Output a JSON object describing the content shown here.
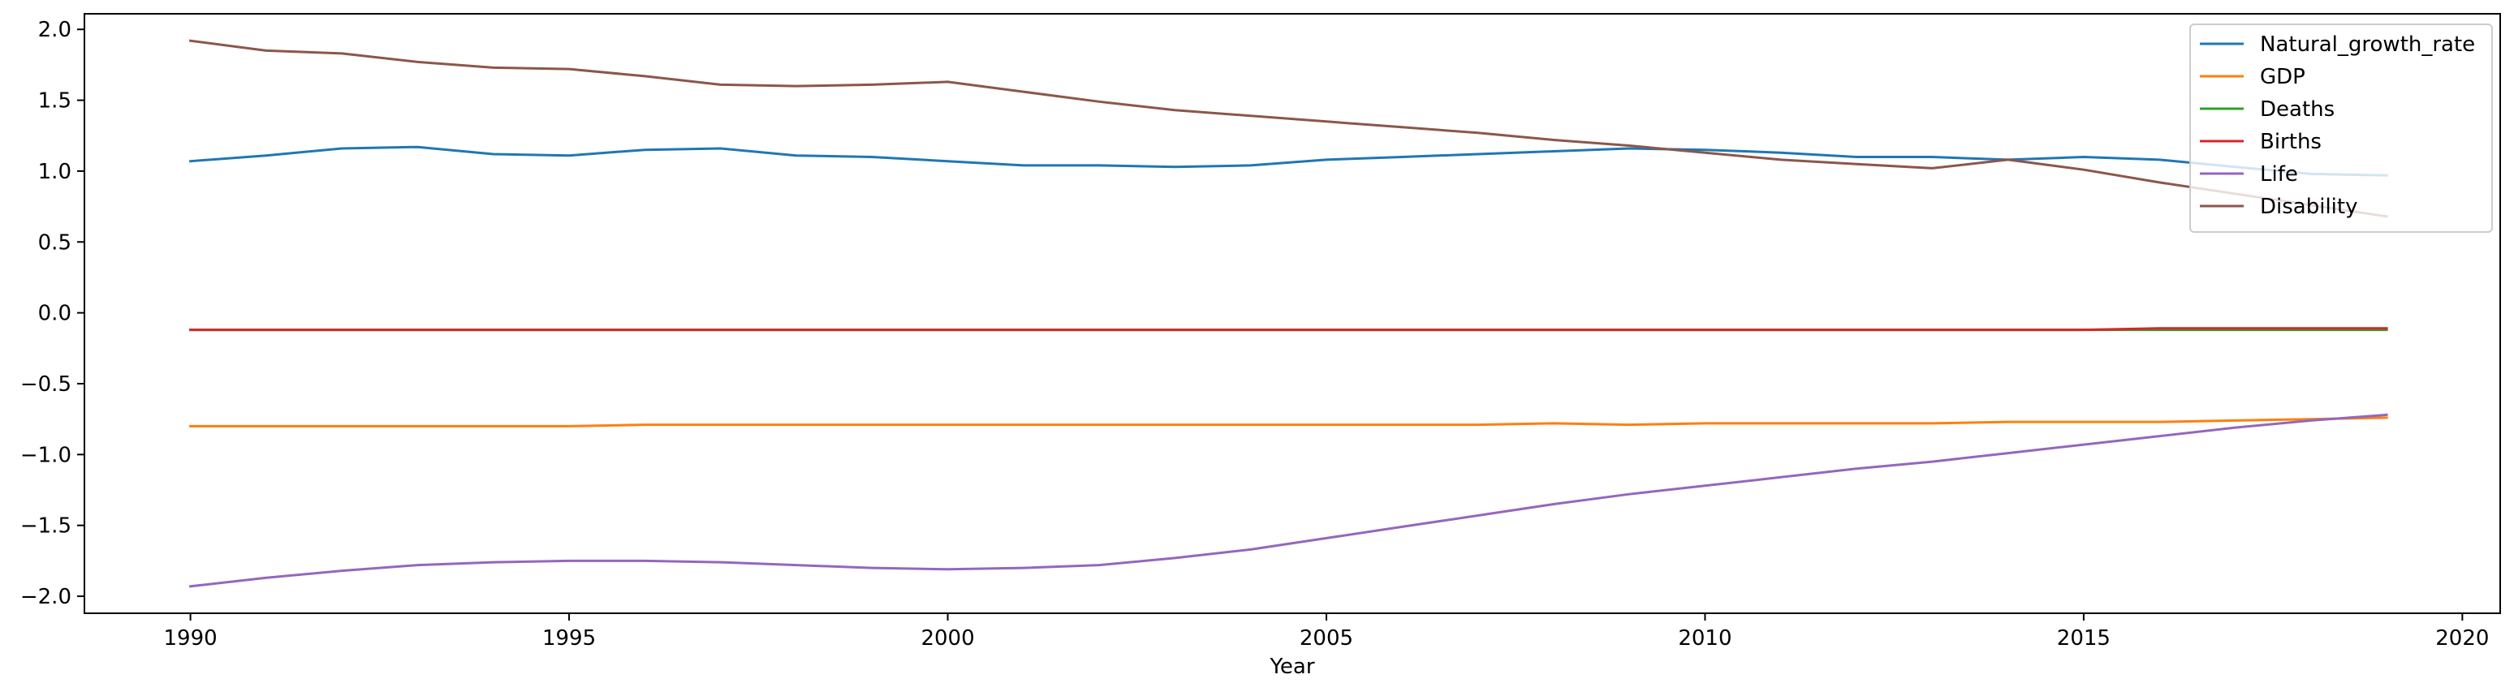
{
  "chart_data": {
    "type": "line",
    "xlabel": "Year",
    "ylabel": "",
    "xlim": [
      1988.6,
      2020.5
    ],
    "ylim": [
      -2.12,
      2.11
    ],
    "x_ticks": [
      1990,
      1995,
      2000,
      2005,
      2010,
      2015,
      2020
    ],
    "y_ticks": [
      2.0,
      1.5,
      1.0,
      0.5,
      0.0,
      -0.5,
      -1.0,
      -1.5,
      -2.0
    ],
    "y_tick_labels": [
      "2.0",
      "1.5",
      "1.0",
      "0.5",
      "0.0",
      "−0.5",
      "−1.0",
      "−1.5",
      "−2.0"
    ],
    "legend_position": "top-right",
    "x": [
      1990,
      1991,
      1992,
      1993,
      1994,
      1995,
      1996,
      1997,
      1998,
      1999,
      2000,
      2001,
      2002,
      2003,
      2004,
      2005,
      2006,
      2007,
      2008,
      2009,
      2010,
      2011,
      2012,
      2013,
      2014,
      2015,
      2016,
      2017,
      2018,
      2019
    ],
    "series": [
      {
        "name": "Natural_growth_rate",
        "color": "#1f77b4",
        "values": [
          1.07,
          1.11,
          1.16,
          1.17,
          1.12,
          1.11,
          1.15,
          1.16,
          1.11,
          1.1,
          1.07,
          1.04,
          1.04,
          1.03,
          1.04,
          1.08,
          1.1,
          1.12,
          1.14,
          1.16,
          1.15,
          1.13,
          1.1,
          1.1,
          1.08,
          1.1,
          1.08,
          1.03,
          0.98,
          0.97
        ]
      },
      {
        "name": "GDP",
        "color": "#ff7f0e",
        "values": [
          -0.8,
          -0.8,
          -0.8,
          -0.8,
          -0.8,
          -0.8,
          -0.79,
          -0.79,
          -0.79,
          -0.79,
          -0.79,
          -0.79,
          -0.79,
          -0.79,
          -0.79,
          -0.79,
          -0.79,
          -0.79,
          -0.78,
          -0.79,
          -0.78,
          -0.78,
          -0.78,
          -0.78,
          -0.77,
          -0.77,
          -0.77,
          -0.76,
          -0.75,
          -0.74
        ]
      },
      {
        "name": "Deaths",
        "color": "#2ca02c",
        "values": [
          -0.12,
          -0.12,
          -0.12,
          -0.12,
          -0.12,
          -0.12,
          -0.12,
          -0.12,
          -0.12,
          -0.12,
          -0.12,
          -0.12,
          -0.12,
          -0.12,
          -0.12,
          -0.12,
          -0.12,
          -0.12,
          -0.12,
          -0.12,
          -0.12,
          -0.12,
          -0.12,
          -0.12,
          -0.12,
          -0.12,
          -0.12,
          -0.12,
          -0.12,
          -0.12
        ]
      },
      {
        "name": "Births",
        "color": "#d62728",
        "values": [
          -0.12,
          -0.12,
          -0.12,
          -0.12,
          -0.12,
          -0.12,
          -0.12,
          -0.12,
          -0.12,
          -0.12,
          -0.12,
          -0.12,
          -0.12,
          -0.12,
          -0.12,
          -0.12,
          -0.12,
          -0.12,
          -0.12,
          -0.12,
          -0.12,
          -0.12,
          -0.12,
          -0.12,
          -0.12,
          -0.12,
          -0.11,
          -0.11,
          -0.11,
          -0.11
        ]
      },
      {
        "name": "Life",
        "color": "#9467bd",
        "values": [
          -1.93,
          -1.87,
          -1.82,
          -1.78,
          -1.76,
          -1.75,
          -1.75,
          -1.76,
          -1.78,
          -1.8,
          -1.81,
          -1.8,
          -1.78,
          -1.73,
          -1.67,
          -1.59,
          -1.51,
          -1.43,
          -1.35,
          -1.28,
          -1.22,
          -1.16,
          -1.1,
          -1.05,
          -0.99,
          -0.93,
          -0.87,
          -0.81,
          -0.76,
          -0.72
        ]
      },
      {
        "name": "Disability",
        "color": "#8c564b",
        "values": [
          1.92,
          1.85,
          1.83,
          1.77,
          1.73,
          1.72,
          1.67,
          1.61,
          1.6,
          1.61,
          1.63,
          1.56,
          1.49,
          1.43,
          1.39,
          1.35,
          1.31,
          1.27,
          1.22,
          1.18,
          1.13,
          1.08,
          1.05,
          1.02,
          1.08,
          1.01,
          0.92,
          0.84,
          0.76,
          0.68
        ]
      }
    ]
  }
}
